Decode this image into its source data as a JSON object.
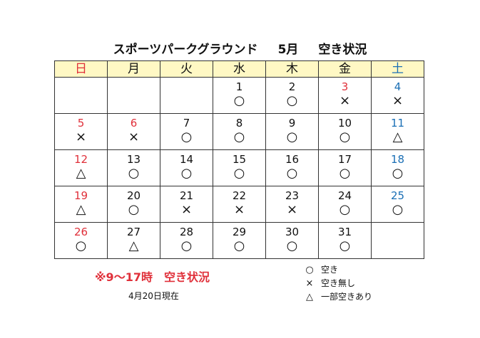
{
  "title": {
    "park": "スポーツパークグラウンド",
    "month": "5月",
    "status": "空き状況"
  },
  "weekdays": [
    "日",
    "月",
    "火",
    "水",
    "木",
    "金",
    "土"
  ],
  "weeks": [
    [
      {
        "day": "",
        "mark": ""
      },
      {
        "day": "",
        "mark": ""
      },
      {
        "day": "",
        "mark": ""
      },
      {
        "day": "1",
        "mark": "○"
      },
      {
        "day": "2",
        "mark": "○"
      },
      {
        "day": "3",
        "mark": "×"
      },
      {
        "day": "4",
        "mark": "×"
      }
    ],
    [
      {
        "day": "5",
        "mark": "×"
      },
      {
        "day": "6",
        "mark": "×"
      },
      {
        "day": "7",
        "mark": "○"
      },
      {
        "day": "8",
        "mark": "○"
      },
      {
        "day": "9",
        "mark": "○"
      },
      {
        "day": "10",
        "mark": "○"
      },
      {
        "day": "11",
        "mark": "△"
      }
    ],
    [
      {
        "day": "12",
        "mark": "△"
      },
      {
        "day": "13",
        "mark": "○"
      },
      {
        "day": "14",
        "mark": "○"
      },
      {
        "day": "15",
        "mark": "○"
      },
      {
        "day": "16",
        "mark": "○"
      },
      {
        "day": "17",
        "mark": "○"
      },
      {
        "day": "18",
        "mark": "○"
      }
    ],
    [
      {
        "day": "19",
        "mark": "△"
      },
      {
        "day": "20",
        "mark": "○"
      },
      {
        "day": "21",
        "mark": "×"
      },
      {
        "day": "22",
        "mark": "×"
      },
      {
        "day": "23",
        "mark": "×"
      },
      {
        "day": "24",
        "mark": "○"
      },
      {
        "day": "25",
        "mark": "○"
      }
    ],
    [
      {
        "day": "26",
        "mark": "○"
      },
      {
        "day": "27",
        "mark": "△"
      },
      {
        "day": "28",
        "mark": "○"
      },
      {
        "day": "29",
        "mark": "○"
      },
      {
        "day": "30",
        "mark": "○"
      },
      {
        "day": "31",
        "mark": "○"
      },
      {
        "day": "",
        "mark": ""
      }
    ]
  ],
  "red_days": [
    "5",
    "6",
    "3"
  ],
  "colors": {
    "sunday_holiday": "#e0303a",
    "saturday": "#1a6fb5",
    "header_bg": "#fff8c4",
    "note": "#e0303a"
  },
  "note": "※9～17時　空き状況",
  "as_of": "4月20日現在",
  "legend": [
    {
      "symbol": "○",
      "label": "空き"
    },
    {
      "symbol": "×",
      "label": "空き無し"
    },
    {
      "symbol": "△",
      "label": "一部空きあり"
    }
  ]
}
